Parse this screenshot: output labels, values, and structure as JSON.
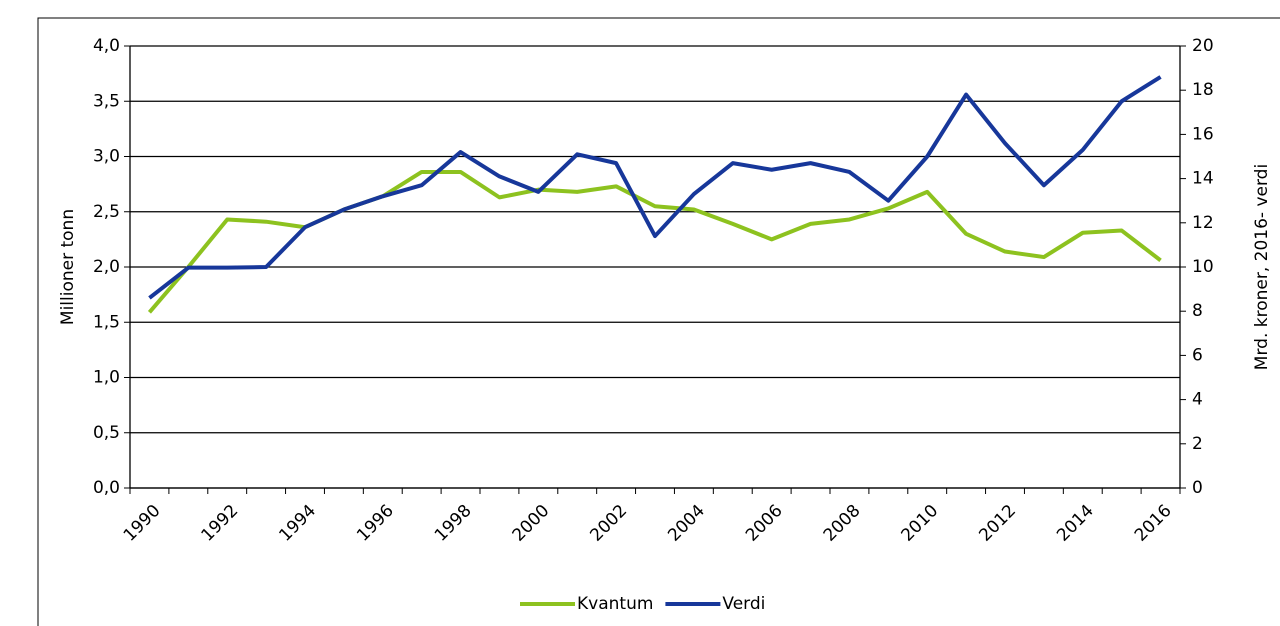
{
  "chart_data": {
    "type": "line",
    "categories": [
      "1990",
      null,
      "1992",
      null,
      "1994",
      null,
      "1996",
      null,
      "1998",
      null,
      "2000",
      null,
      "2002",
      null,
      "2004",
      null,
      "2006",
      null,
      "2008",
      null,
      "2010",
      null,
      "2012",
      null,
      "2014",
      null,
      "2016"
    ],
    "y_label": "Millioner tonn",
    "y2_label": "Mrd. kroner, 2016- verdi",
    "ylim": [
      0,
      4
    ],
    "yticks": [
      {
        "value": 0,
        "label": "0,0"
      },
      {
        "value": 0.5,
        "label": "0,5"
      },
      {
        "value": 1,
        "label": "1,0"
      },
      {
        "value": 1.5,
        "label": "1,5"
      },
      {
        "value": 2,
        "label": "2,0"
      },
      {
        "value": 2.5,
        "label": "2,5"
      },
      {
        "value": 3,
        "label": "3,0"
      },
      {
        "value": 3.5,
        "label": "3,5"
      },
      {
        "value": 4,
        "label": "4,0"
      }
    ],
    "y2lim": [
      0,
      20
    ],
    "y2ticks": [
      0,
      2,
      4,
      6,
      8,
      10,
      12,
      14,
      16,
      18,
      20
    ],
    "grid": true,
    "legend": "bottom",
    "series": [
      {
        "name": "Kvantum",
        "color": "#8dc21f",
        "values": [
          1.59,
          2.0,
          2.43,
          2.41,
          2.36,
          2.52,
          2.64,
          2.86,
          2.86,
          2.63,
          2.7,
          2.68,
          2.73,
          2.55,
          2.52,
          2.39,
          2.25,
          2.39,
          2.43,
          2.53,
          2.68,
          2.3,
          2.14,
          2.09,
          2.31,
          2.33,
          2.06
        ]
      },
      {
        "name": "Verdi",
        "color": "#17379a",
        "axis": "y2",
        "values": [
          8.6,
          9.97,
          9.97,
          10.0,
          11.8,
          12.6,
          13.2,
          13.7,
          15.2,
          14.1,
          13.4,
          15.1,
          14.7,
          11.4,
          13.3,
          14.7,
          14.4,
          14.7,
          14.3,
          13.0,
          15.0,
          17.8,
          15.6,
          13.7,
          15.3,
          17.5,
          18.6
        ]
      }
    ]
  }
}
